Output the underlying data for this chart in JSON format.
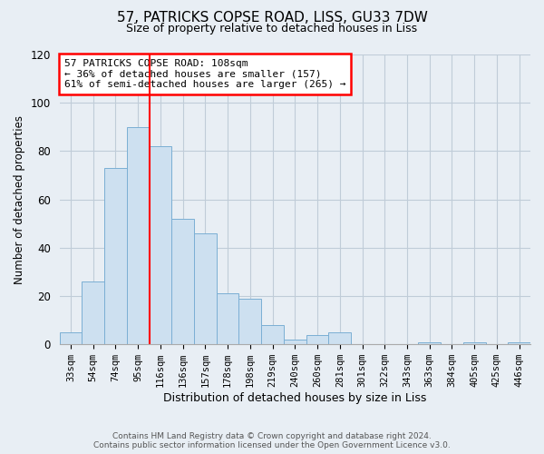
{
  "title": "57, PATRICKS COPSE ROAD, LISS, GU33 7DW",
  "subtitle": "Size of property relative to detached houses in Liss",
  "xlabel": "Distribution of detached houses by size in Liss",
  "ylabel": "Number of detached properties",
  "categories": [
    "33sqm",
    "54sqm",
    "74sqm",
    "95sqm",
    "116sqm",
    "136sqm",
    "157sqm",
    "178sqm",
    "198sqm",
    "219sqm",
    "240sqm",
    "260sqm",
    "281sqm",
    "301sqm",
    "322sqm",
    "343sqm",
    "363sqm",
    "384sqm",
    "405sqm",
    "425sqm",
    "446sqm"
  ],
  "values": [
    5,
    26,
    73,
    90,
    82,
    52,
    46,
    21,
    19,
    8,
    2,
    4,
    5,
    0,
    0,
    0,
    1,
    0,
    1,
    0,
    1
  ],
  "bar_color": "#cde0f0",
  "bar_edge_color": "#7bafd4",
  "vline_x_index": 3,
  "vline_color": "red",
  "annotation_title": "57 PATRICKS COPSE ROAD: 108sqm",
  "annotation_line1": "← 36% of detached houses are smaller (157)",
  "annotation_line2": "61% of semi-detached houses are larger (265) →",
  "annotation_box_color": "white",
  "annotation_box_edge_color": "red",
  "ylim": [
    0,
    120
  ],
  "yticks": [
    0,
    20,
    40,
    60,
    80,
    100,
    120
  ],
  "footer1": "Contains HM Land Registry data © Crown copyright and database right 2024.",
  "footer2": "Contains public sector information licensed under the Open Government Licence v3.0.",
  "background_color": "#e8eef4",
  "plot_bg_color": "#e8eef4",
  "grid_color": "#c0ccd8"
}
